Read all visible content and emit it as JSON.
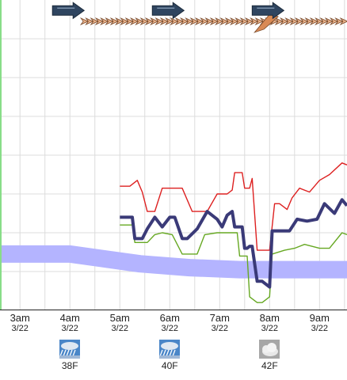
{
  "colors": {
    "upper": "#dd2020",
    "mid": "#3a3a78",
    "lower": "#66a822",
    "band": "#b4b4ff",
    "axis_left": "#88dd88",
    "arrow_big": "#2f4560",
    "arrow_small": "#e8b088"
  },
  "chart_data": {
    "type": "line",
    "x_ticks": [
      {
        "time": "3am",
        "date": "3/22"
      },
      {
        "time": "4am",
        "date": "3/22"
      },
      {
        "time": "5am",
        "date": "3/22"
      },
      {
        "time": "6am",
        "date": "3/22"
      },
      {
        "time": "7am",
        "date": "3/22"
      },
      {
        "time": "8am",
        "date": "3/22"
      },
      {
        "time": "9am",
        "date": "3/22"
      }
    ],
    "xlim": [
      2.6,
      9.55
    ],
    "ylim": [
      0,
      8
    ],
    "grid": true,
    "series": [
      {
        "color": "#dd2020",
        "x": [
          5.0,
          5.2,
          5.35,
          5.45,
          5.55,
          5.7,
          5.85,
          6.1,
          6.25,
          6.45,
          6.55,
          6.75,
          6.95,
          7.05,
          7.15,
          7.25,
          7.3,
          7.45,
          7.5,
          7.6,
          7.65,
          7.75,
          7.9,
          8.0,
          8.1,
          8.2,
          8.35,
          8.45,
          8.6,
          8.8,
          9.0,
          9.2,
          9.45,
          9.55
        ],
        "y": [
          3.2,
          3.2,
          3.35,
          3.05,
          2.55,
          2.55,
          3.15,
          3.15,
          3.15,
          2.55,
          2.55,
          2.55,
          3.0,
          3.0,
          3.0,
          3.1,
          3.55,
          3.55,
          3.15,
          3.15,
          3.4,
          1.55,
          1.55,
          1.55,
          2.75,
          2.75,
          2.6,
          2.9,
          3.15,
          3.05,
          3.35,
          3.5,
          3.8,
          3.75
        ]
      },
      {
        "color": "#3a3a78",
        "x": [
          5.0,
          5.25,
          5.3,
          5.45,
          5.55,
          5.7,
          5.85,
          6.0,
          6.1,
          6.25,
          6.35,
          6.55,
          6.75,
          6.95,
          7.05,
          7.15,
          7.25,
          7.3,
          7.45,
          7.5,
          7.55,
          7.6,
          7.65,
          7.75,
          7.85,
          8.0,
          8.05,
          8.25,
          8.4,
          8.55,
          8.75,
          8.95,
          9.1,
          9.3,
          9.45,
          9.55
        ],
        "y": [
          2.4,
          2.4,
          1.85,
          1.85,
          2.1,
          2.4,
          2.15,
          2.4,
          2.4,
          1.85,
          1.85,
          2.1,
          2.55,
          2.35,
          2.15,
          2.45,
          2.55,
          2.15,
          2.15,
          1.6,
          1.6,
          1.65,
          1.65,
          0.75,
          0.75,
          0.6,
          2.05,
          2.05,
          2.05,
          2.35,
          2.3,
          2.35,
          2.75,
          2.5,
          2.85,
          2.7
        ]
      },
      {
        "color": "#66a822",
        "x": [
          5.0,
          5.25,
          5.3,
          5.55,
          5.7,
          5.85,
          6.05,
          6.25,
          6.35,
          6.55,
          6.7,
          6.95,
          7.15,
          7.35,
          7.4,
          7.45,
          7.55,
          7.6,
          7.75,
          7.85,
          8.0,
          8.05,
          8.3,
          8.5,
          8.7,
          9.0,
          9.2,
          9.45,
          9.55
        ],
        "y": [
          2.2,
          2.2,
          1.75,
          1.75,
          1.95,
          2.0,
          1.95,
          1.45,
          1.45,
          1.45,
          1.95,
          2.0,
          2.0,
          2.0,
          1.4,
          1.4,
          1.4,
          0.35,
          0.2,
          0.2,
          0.35,
          1.45,
          1.55,
          1.6,
          1.7,
          1.6,
          1.6,
          2.0,
          1.95
        ]
      },
      {
        "color": "#b4b4ff",
        "x": [
          2.6,
          4.0,
          5.4,
          6.4,
          7.4,
          8.4,
          9.55
        ],
        "y": [
          1.45,
          1.45,
          1.2,
          1.1,
          1.05,
          1.05,
          1.05
        ]
      }
    ],
    "wind_large_arrow_times": [
      4.0,
      6.0,
      8.0
    ],
    "wind_small_arrow_times_start": 4.3,
    "wind_small_arrow_times_end": 9.55
  },
  "weather": [
    {
      "time": "4am",
      "temp": "38F",
      "icon": "rain-snow-icon"
    },
    {
      "time": "6am",
      "temp": "40F",
      "icon": "rain-snow-icon"
    },
    {
      "time": "8am",
      "temp": "42F",
      "icon": "cloudy-icon"
    }
  ]
}
